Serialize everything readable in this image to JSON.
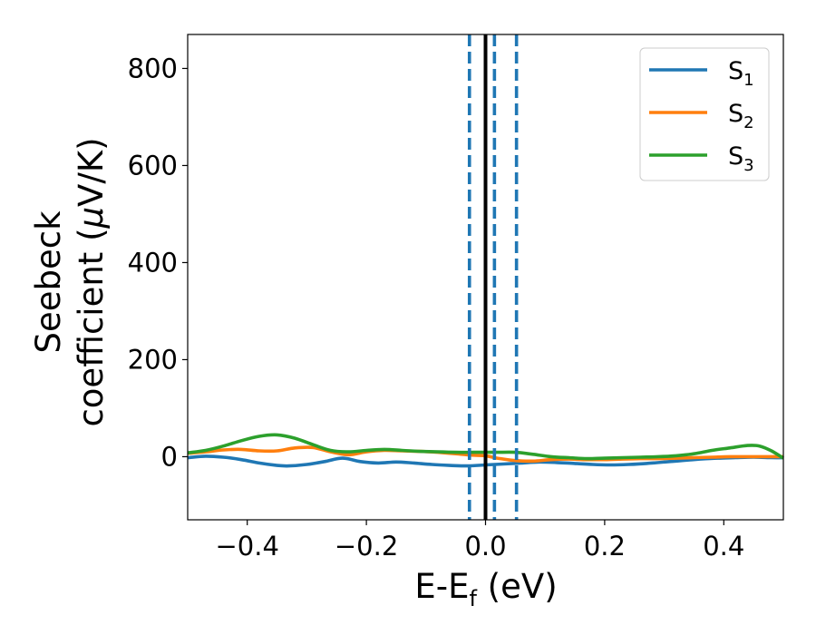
{
  "chart_data": {
    "type": "line",
    "title": "",
    "xlabel": "E-E",
    "xlabel_sub": "f",
    "xlabel_unit": " (eV)",
    "ylabel_line1": "Seebeck",
    "ylabel_line2_prefix": "coefficient  (",
    "ylabel_mu": "μ",
    "ylabel_line2_suffix": "V/K)",
    "xlim": [
      -0.5,
      0.5
    ],
    "ylim": [
      -130,
      870
    ],
    "x_ticks": [
      -0.4,
      -0.2,
      0.0,
      0.2,
      0.4
    ],
    "x_tick_labels": [
      "−0.4",
      "−0.2",
      "0.0",
      "0.2",
      "0.4"
    ],
    "y_ticks": [
      0,
      200,
      400,
      600,
      800
    ],
    "y_tick_labels": [
      "0",
      "200",
      "400",
      "600",
      "800"
    ],
    "grid": false,
    "legend_position": "top-right",
    "fermi_level_line": {
      "x": 0.0,
      "color": "#000000"
    },
    "dashed_lines": {
      "x": [
        -0.027,
        0.015,
        0.052
      ],
      "color": "#1f77b4"
    },
    "series": [
      {
        "name": "S",
        "subscript": "1",
        "color": "#1f77b4",
        "x": [
          -0.5,
          -0.47,
          -0.44,
          -0.41,
          -0.38,
          -0.35,
          -0.33,
          -0.3,
          -0.27,
          -0.24,
          -0.21,
          -0.18,
          -0.15,
          -0.12,
          -0.09,
          -0.06,
          -0.03,
          0.0,
          0.03,
          0.06,
          0.09,
          0.12,
          0.15,
          0.18,
          0.21,
          0.24,
          0.27,
          0.3,
          0.33,
          0.36,
          0.39,
          0.42,
          0.45,
          0.48,
          0.5
        ],
        "values": [
          -2,
          1,
          -1,
          -6,
          -13,
          -18,
          -19,
          -16,
          -10,
          -3,
          -10,
          -13,
          -11,
          -13,
          -16,
          -18,
          -19,
          -17,
          -15,
          -13,
          -11,
          -12,
          -14,
          -16,
          -17,
          -16,
          -14,
          -11,
          -8,
          -5,
          -3,
          -2,
          -1,
          -2,
          -2
        ]
      },
      {
        "name": "S",
        "subscript": "2",
        "color": "#ff7f0e",
        "x": [
          -0.5,
          -0.47,
          -0.44,
          -0.41,
          -0.38,
          -0.35,
          -0.32,
          -0.29,
          -0.26,
          -0.23,
          -0.2,
          -0.17,
          -0.14,
          -0.11,
          -0.08,
          -0.05,
          -0.02,
          0.0,
          0.02,
          0.05,
          0.08,
          0.11,
          0.14,
          0.17,
          0.2,
          0.23,
          0.26,
          0.29,
          0.32,
          0.35,
          0.38,
          0.41,
          0.44,
          0.47,
          0.5
        ],
        "values": [
          7,
          10,
          14,
          15,
          12,
          12,
          18,
          19,
          10,
          4,
          10,
          13,
          12,
          11,
          9,
          6,
          3,
          2,
          -3,
          -8,
          -9,
          -6,
          -5,
          -6,
          -6,
          -5,
          -4,
          -4,
          -3,
          -2,
          -1,
          0,
          0,
          0,
          0
        ]
      },
      {
        "name": "S",
        "subscript": "3",
        "color": "#2ca02c",
        "x": [
          -0.5,
          -0.47,
          -0.44,
          -0.41,
          -0.38,
          -0.35,
          -0.32,
          -0.29,
          -0.26,
          -0.23,
          -0.2,
          -0.17,
          -0.14,
          -0.11,
          -0.08,
          -0.05,
          -0.02,
          0.0,
          0.02,
          0.05,
          0.08,
          0.11,
          0.14,
          0.17,
          0.2,
          0.23,
          0.26,
          0.29,
          0.32,
          0.35,
          0.38,
          0.41,
          0.44,
          0.46,
          0.48,
          0.5
        ],
        "values": [
          8,
          13,
          22,
          33,
          42,
          45,
          38,
          25,
          13,
          10,
          13,
          15,
          13,
          11,
          10,
          9,
          9,
          9,
          9,
          9,
          5,
          0,
          -2,
          -4,
          -3,
          -2,
          -1,
          0,
          2,
          6,
          13,
          18,
          23,
          22,
          12,
          -3
        ]
      }
    ]
  }
}
